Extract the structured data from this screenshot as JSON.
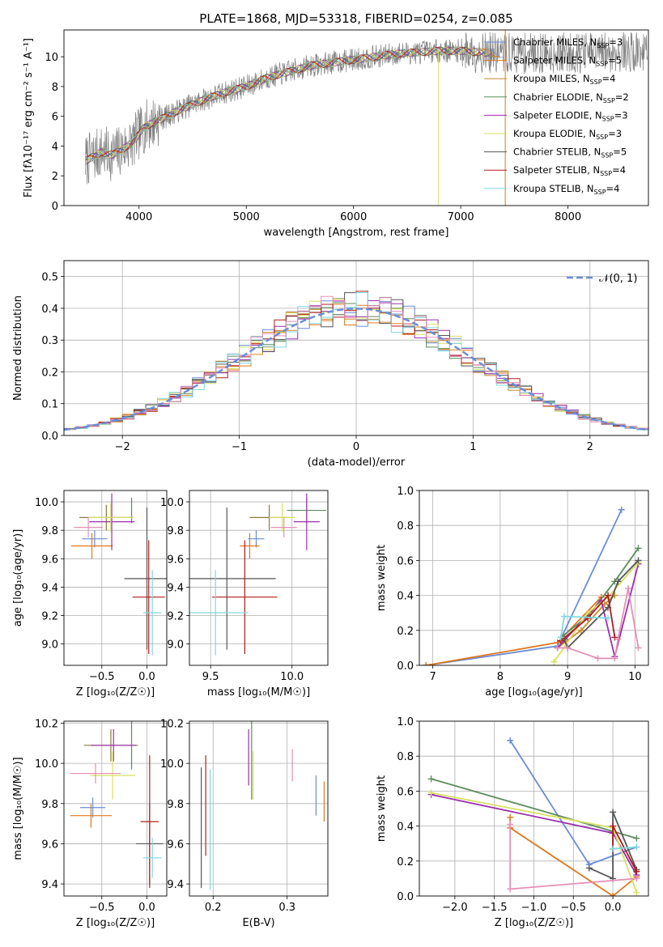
{
  "figure": {
    "title": "PLATE=1868, MJD=53318, FIBERID=0254, z=0.085"
  },
  "chart_data": [
    {
      "id": "spectrum",
      "type": "line",
      "title": "PLATE=1868, MJD=53318, FIBERID=0254, z=0.085",
      "xlabel": "wavelength [Angstrom, rest frame]",
      "ylabel": "Flux [fλ10⁻¹⁷ erg cm⁻² s⁻¹ A⁻¹]",
      "xlim": [
        3300,
        8750
      ],
      "ylim": [
        0,
        11.8
      ],
      "xticks": [
        4000,
        5000,
        6000,
        7000,
        8000
      ],
      "yticks": [
        0,
        2,
        4,
        6,
        8,
        10
      ],
      "grid": false,
      "legend_position": "upper-right",
      "continuum": {
        "x": [
          3500,
          3650,
          3750,
          3850,
          3950,
          4050,
          4200,
          4400,
          4600,
          4800,
          5000,
          5200,
          5400,
          5600,
          5800,
          6000,
          6200,
          6400,
          6600,
          6800,
          7000,
          7200,
          7400
        ],
        "y": [
          3.0,
          3.6,
          3.4,
          3.8,
          4.3,
          5.3,
          5.8,
          6.5,
          7.1,
          7.6,
          8.0,
          8.6,
          9.0,
          9.4,
          9.6,
          9.8,
          10.0,
          10.2,
          10.3,
          10.4,
          10.4,
          10.3,
          10.2
        ]
      },
      "series": [
        {
          "name": "Chabrier MILES, N",
          "sub": "SSP",
          "suffix": "=3",
          "color": "#6a8cd8"
        },
        {
          "name": "Salpeter MILES, N",
          "sub": "SSP",
          "suffix": "=5",
          "color": "#e0781e"
        },
        {
          "name": "Kroupa MILES, N",
          "sub": "SSP",
          "suffix": "=4",
          "color": "#c98a2a"
        },
        {
          "name": "Chabrier ELODIE, N",
          "sub": "SSP",
          "suffix": "=2",
          "color": "#5c8c5c"
        },
        {
          "name": "Salpeter ELODIE, N",
          "sub": "SSP",
          "suffix": "=3",
          "color": "#9b2fae"
        },
        {
          "name": "Kroupa ELODIE, N",
          "sub": "SSP",
          "suffix": "=3",
          "color": "#d8e060"
        },
        {
          "name": "Chabrier STELIB, N",
          "sub": "SSP",
          "suffix": "=5",
          "color": "#555555"
        },
        {
          "name": "Salpeter STELIB, N",
          "sub": "SSP",
          "suffix": "=4",
          "color": "#b01c1c"
        },
        {
          "name": "Kroupa STELIB, N",
          "sub": "SSP",
          "suffix": "=4",
          "color": "#7fd8e0"
        }
      ]
    },
    {
      "id": "residuals",
      "type": "area",
      "xlabel": "(data-model)/error",
      "ylabel": "Normed distribution",
      "xlim": [
        -2.5,
        2.5
      ],
      "ylim": [
        0,
        0.55
      ],
      "xticks": [
        -2,
        -1,
        0,
        1,
        2
      ],
      "xtick_labels": [
        "−2",
        "−1",
        "0",
        "1",
        "2"
      ],
      "yticks": [
        0,
        0.1,
        0.2,
        0.3,
        0.4,
        0.5
      ],
      "ytick_labels": [
        "0.0",
        "0.1",
        "0.2",
        "0.3",
        "0.4",
        "0.5"
      ],
      "grid": true,
      "bin_width": 0.1,
      "legend": "𝒩(0, 1)",
      "legend_position": "upper-right",
      "gaussian": {
        "mu": 0,
        "sigma": 1,
        "color": "#6a8cd8"
      }
    },
    {
      "id": "age-vs-Z",
      "type": "scatter",
      "xlabel": "Z [log₁₀(Z/Z☉)]",
      "ylabel": "age  [log₁₀(age/yr)]",
      "xlim": [
        -0.92,
        0.22
      ],
      "ylim": [
        8.85,
        10.08
      ],
      "xticks": [
        -0.5,
        0.0
      ],
      "xtick_labels": [
        "−0.5",
        "0.0"
      ],
      "yticks": [
        9.0,
        9.2,
        9.4,
        9.6,
        9.8,
        10.0
      ],
      "ytick_labels": [
        "9.0",
        "9.2",
        "9.4",
        "9.6",
        "9.8",
        "10.0"
      ],
      "grid": true,
      "points": [
        {
          "x": -0.58,
          "y": 9.74,
          "xerr": 0.14,
          "yerr": 0.06,
          "color": "#6a8cd8"
        },
        {
          "x": -0.61,
          "y": 9.69,
          "xerr": 0.23,
          "yerr": 0.09,
          "color": "#e0781e"
        },
        {
          "x": -0.45,
          "y": 9.89,
          "xerr": 0.3,
          "yerr": 0.09,
          "color": "#8c7a3a"
        },
        {
          "x": -0.17,
          "y": 9.94,
          "xerr": 0.0,
          "yerr": 0.09,
          "color": "#5c8c5c"
        },
        {
          "x": -0.39,
          "y": 9.86,
          "xerr": 0.25,
          "yerr": 0.2,
          "color": "#9b2fae"
        },
        {
          "x": -0.4,
          "y": 9.89,
          "xerr": 0.25,
          "yerr": 0.1,
          "color": "#d8e060"
        },
        {
          "x": 0.0,
          "y": 9.46,
          "xerr": 0.25,
          "yerr": 0.5,
          "color": "#555555"
        },
        {
          "x": 0.02,
          "y": 9.33,
          "xerr": 0.18,
          "yerr": 0.4,
          "color": "#b01c1c"
        },
        {
          "x": 0.06,
          "y": 9.22,
          "xerr": 0.1,
          "yerr": 0.3,
          "color": "#7fd8e0"
        },
        {
          "x": -0.65,
          "y": 9.82,
          "xerr": 0.16,
          "yerr": 0.07,
          "color": "#e58fb6"
        }
      ]
    },
    {
      "id": "age-vs-mass",
      "type": "scatter",
      "xlabel": "mass [log₁₀(M/M☉)]",
      "ylabel": "",
      "xlim": [
        9.37,
        10.22
      ],
      "ylim": [
        8.85,
        10.08
      ],
      "xticks": [
        9.5,
        10.0
      ],
      "xtick_labels": [
        "9.5",
        "10.0"
      ],
      "yticks": [
        9.0,
        9.2,
        9.4,
        9.6,
        9.8,
        10.0
      ],
      "ytick_labels": [
        "9.0",
        "9.2",
        "9.4",
        "9.6",
        "9.8",
        "10.0"
      ],
      "grid": true,
      "points": [
        {
          "x": 9.78,
          "y": 9.74,
          "xerr": 0.05,
          "yerr": 0.06,
          "color": "#6a8cd8"
        },
        {
          "x": 9.74,
          "y": 9.69,
          "xerr": 0.06,
          "yerr": 0.09,
          "color": "#e0781e"
        },
        {
          "x": 9.86,
          "y": 9.89,
          "xerr": 0.12,
          "yerr": 0.09,
          "color": "#8c7a3a"
        },
        {
          "x": 10.09,
          "y": 9.94,
          "xerr": 0.12,
          "yerr": 0.09,
          "color": "#5c8c5c"
        },
        {
          "x": 10.09,
          "y": 9.86,
          "xerr": 0.08,
          "yerr": 0.2,
          "color": "#9b2fae"
        },
        {
          "x": 9.94,
          "y": 9.89,
          "xerr": 0.08,
          "yerr": 0.1,
          "color": "#d8e060"
        },
        {
          "x": 9.6,
          "y": 9.46,
          "xerr": 0.3,
          "yerr": 0.5,
          "color": "#555555"
        },
        {
          "x": 9.71,
          "y": 9.33,
          "xerr": 0.2,
          "yerr": 0.4,
          "color": "#b01c1c"
        },
        {
          "x": 9.53,
          "y": 9.22,
          "xerr": 0.2,
          "yerr": 0.3,
          "color": "#7fd8e0"
        },
        {
          "x": 9.95,
          "y": 9.82,
          "xerr": 0.08,
          "yerr": 0.07,
          "color": "#e58fb6"
        }
      ]
    },
    {
      "id": "weight-vs-age",
      "type": "line",
      "xlabel": "age  [log₁₀(age/yr)]",
      "ylabel": "mass weight",
      "xlim": [
        6.8,
        10.2
      ],
      "ylim": [
        0,
        1.0
      ],
      "xticks": [
        7,
        8,
        9,
        10
      ],
      "xtick_labels": [
        "7",
        "8",
        "9",
        "10"
      ],
      "yticks": [
        0,
        0.2,
        0.4,
        0.6,
        0.8,
        1.0
      ],
      "ytick_labels": [
        "0.0",
        "0.2",
        "0.4",
        "0.6",
        "0.8",
        "1.0"
      ],
      "grid": true,
      "series": [
        {
          "color": "#6a8cd8",
          "x": [
            6.9,
            8.85,
            9.8
          ],
          "y": [
            0.0,
            0.11,
            0.89
          ]
        },
        {
          "color": "#e0781e",
          "x": [
            6.9,
            8.85,
            9.5
          ],
          "y": [
            0.0,
            0.13,
            0.39
          ]
        },
        {
          "color": "#c98a2a",
          "x": [
            8.85,
            9.2,
            9.55,
            9.7
          ],
          "y": [
            0.1,
            0.2,
            0.35,
            0.4
          ]
        },
        {
          "color": "#5c8c5c",
          "x": [
            8.9,
            9.3,
            9.7,
            10.05
          ],
          "y": [
            0.16,
            0.28,
            0.48,
            0.67
          ]
        },
        {
          "color": "#9b2fae",
          "x": [
            8.85,
            9.5,
            9.7,
            10.05
          ],
          "y": [
            0.1,
            0.37,
            0.05,
            0.58
          ]
        },
        {
          "color": "#d8e060",
          "x": [
            8.8,
            9.3,
            9.6,
            10.05
          ],
          "y": [
            0.02,
            0.3,
            0.39,
            0.59
          ]
        },
        {
          "color": "#555555",
          "x": [
            8.95,
            9.0,
            9.6,
            9.75,
            10.05
          ],
          "y": [
            0.15,
            0.1,
            0.33,
            0.48,
            0.6
          ]
        },
        {
          "color": "#b01c1c",
          "x": [
            8.9,
            9.3,
            9.6,
            9.7
          ],
          "y": [
            0.14,
            0.27,
            0.4,
            0.16
          ]
        },
        {
          "color": "#7fd8e0",
          "x": [
            8.9,
            8.95,
            9.6
          ],
          "y": [
            0.16,
            0.28,
            0.27
          ]
        },
        {
          "color": "#e58fb6",
          "x": [
            8.85,
            9.0,
            9.45,
            9.7,
            9.75,
            9.9,
            10.05
          ],
          "y": [
            0.1,
            0.1,
            0.04,
            0.04,
            0.15,
            0.44,
            0.1
          ]
        }
      ]
    },
    {
      "id": "mass-vs-Z",
      "type": "scatter",
      "xlabel": "Z [log₁₀(Z/Z☉)]",
      "ylabel": "mass [log₁₀(M/M☉)]",
      "xlim": [
        -0.92,
        0.22
      ],
      "ylim": [
        9.34,
        10.21
      ],
      "xticks": [
        -0.5,
        0.0
      ],
      "xtick_labels": [
        "−0.5",
        "0.0"
      ],
      "yticks": [
        9.4,
        9.6,
        9.8,
        10.0,
        10.2
      ],
      "ytick_labels": [
        "9.4",
        "9.6",
        "9.8",
        "10.0",
        "10.2"
      ],
      "grid": true,
      "points": [
        {
          "x": -0.6,
          "y": 9.78,
          "xerr": 0.14,
          "yerr": 0.05,
          "color": "#6a8cd8"
        },
        {
          "x": -0.62,
          "y": 9.74,
          "xerr": 0.23,
          "yerr": 0.06,
          "color": "#e0781e"
        },
        {
          "x": -0.4,
          "y": 10.09,
          "xerr": 0.3,
          "yerr": 0.08,
          "color": "#8c7a3a"
        },
        {
          "x": -0.17,
          "y": 10.09,
          "xerr": 0.0,
          "yerr": 0.12,
          "color": "#5c8c5c"
        },
        {
          "x": -0.37,
          "y": 10.09,
          "xerr": 0.25,
          "yerr": 0.08,
          "color": "#9b2fae"
        },
        {
          "x": -0.38,
          "y": 9.94,
          "xerr": 0.25,
          "yerr": 0.12,
          "color": "#d8e060"
        },
        {
          "x": 0.03,
          "y": 9.6,
          "xerr": 0.15,
          "yerr": 0.2,
          "color": "#555555"
        },
        {
          "x": 0.03,
          "y": 9.71,
          "xerr": 0.1,
          "yerr": 0.33,
          "color": "#b01c1c"
        },
        {
          "x": 0.06,
          "y": 9.53,
          "xerr": 0.1,
          "yerr": 0.1,
          "color": "#7fd8e0"
        },
        {
          "x": -0.57,
          "y": 9.95,
          "xerr": 0.28,
          "yerr": 0.05,
          "color": "#e58fb6"
        }
      ]
    },
    {
      "id": "mass-vs-ebv",
      "type": "scatter",
      "xlabel": "E(B-V)",
      "ylabel": "",
      "xlim": [
        0.168,
        0.355
      ],
      "ylim": [
        9.34,
        10.21
      ],
      "xticks": [
        0.2,
        0.3
      ],
      "xtick_labels": [
        "0.2",
        "0.3"
      ],
      "yticks": [
        9.4,
        9.6,
        9.8,
        10.0,
        10.2
      ],
      "ytick_labels": [
        "9.4",
        "9.6",
        "9.8",
        "10.0",
        "10.2"
      ],
      "grid": true,
      "points": [
        {
          "x": 0.339,
          "y": 9.84,
          "xerr": 0.0,
          "yerr": 0.1,
          "color": "#6a8cd8"
        },
        {
          "x": 0.35,
          "y": 9.81,
          "xerr": 0.0,
          "yerr": 0.1,
          "color": "#e0781e"
        },
        {
          "x": 0.248,
          "y": 10.03,
          "xerr": 0.0,
          "yerr": 0.14,
          "color": "#9b2fae"
        },
        {
          "x": 0.252,
          "y": 10.02,
          "xerr": 0.0,
          "yerr": 0.2,
          "color": "#5c8c5c"
        },
        {
          "x": 0.254,
          "y": 9.94,
          "xerr": 0.0,
          "yerr": 0.12,
          "color": "#d8e060"
        },
        {
          "x": 0.184,
          "y": 9.68,
          "xerr": 0.0,
          "yerr": 0.3,
          "color": "#555555"
        },
        {
          "x": 0.19,
          "y": 9.79,
          "xerr": 0.0,
          "yerr": 0.25,
          "color": "#b01c1c"
        },
        {
          "x": 0.196,
          "y": 9.67,
          "xerr": 0.0,
          "yerr": 0.3,
          "color": "#7fd8e0"
        },
        {
          "x": 0.307,
          "y": 9.99,
          "xerr": 0.0,
          "yerr": 0.08,
          "color": "#e58fb6"
        }
      ]
    },
    {
      "id": "weight-vs-Z",
      "type": "line",
      "xlabel": "Z [log₁₀(Z/Z☉)]",
      "ylabel": "mass weight",
      "xlim": [
        -2.45,
        0.45
      ],
      "ylim": [
        0,
        1.0
      ],
      "xticks": [
        -2.0,
        -1.5,
        -1.0,
        -0.5,
        0.0
      ],
      "xtick_labels": [
        "−2.0",
        "−1.5",
        "−1.0",
        "−0.5",
        "0.0"
      ],
      "yticks": [
        0,
        0.2,
        0.4,
        0.6,
        0.8,
        1.0
      ],
      "ytick_labels": [
        "0.0",
        "0.2",
        "0.4",
        "0.6",
        "0.8",
        "1.0"
      ],
      "grid": true,
      "series": [
        {
          "color": "#6a8cd8",
          "x": [
            -1.3,
            -0.3,
            0.3
          ],
          "y": [
            0.89,
            0.18,
            0.28
          ]
        },
        {
          "color": "#e0781e",
          "x": [
            -1.3,
            -1.3,
            0.0,
            0.3
          ],
          "y": [
            0.45,
            0.39,
            0.0,
            0.11
          ]
        },
        {
          "color": "#5c8c5c",
          "x": [
            -2.3,
            0.0,
            0.3
          ],
          "y": [
            0.67,
            0.37,
            0.33
          ]
        },
        {
          "color": "#9b2fae",
          "x": [
            -2.3,
            0.0,
            0.3
          ],
          "y": [
            0.58,
            0.36,
            0.12
          ]
        },
        {
          "color": "#d8e060",
          "x": [
            -2.3,
            0.0,
            0.3
          ],
          "y": [
            0.59,
            0.39,
            0.02
          ]
        },
        {
          "color": "#555555",
          "x": [
            -0.3,
            0.0,
            0.0,
            0.3
          ],
          "y": [
            0.16,
            0.1,
            0.48,
            0.15
          ]
        },
        {
          "color": "#b01c1c",
          "x": [
            0.0,
            0.0,
            0.3
          ],
          "y": [
            0.27,
            0.4,
            0.14
          ]
        },
        {
          "color": "#7fd8e0",
          "x": [
            0.0,
            0.3
          ],
          "y": [
            0.27,
            0.28
          ]
        },
        {
          "color": "#e58fb6",
          "x": [
            -1.3,
            -1.3,
            0.3
          ],
          "y": [
            0.41,
            0.04,
            0.1
          ]
        }
      ]
    }
  ]
}
